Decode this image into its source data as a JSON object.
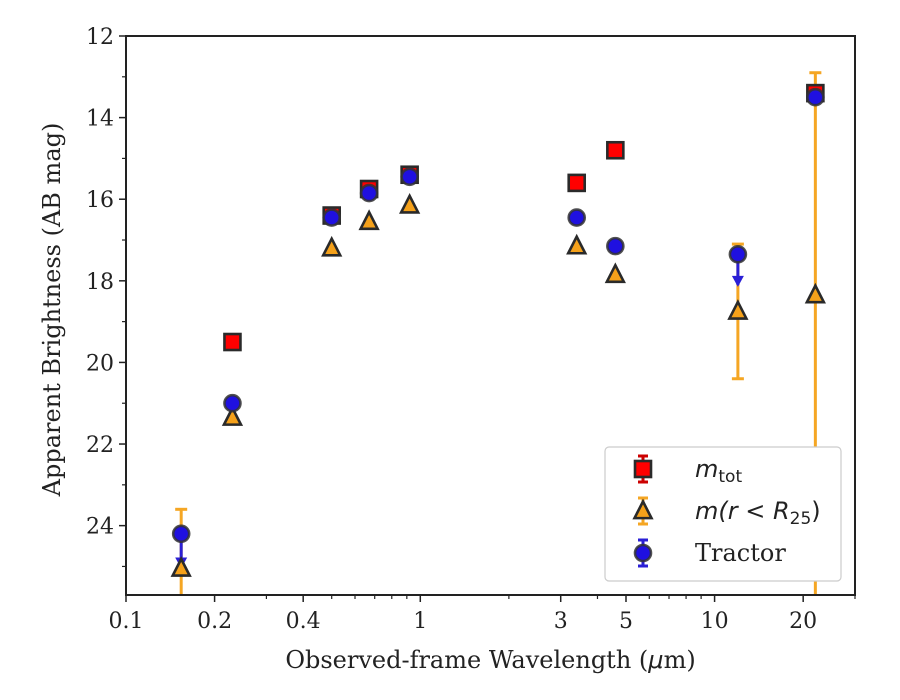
{
  "chart_data": {
    "type": "scatter",
    "xlabel_pre": "Observed-frame Wavelength (",
    "xlabel_mu": "μ",
    "xlabel_post": "m)",
    "ylabel": "Apparent Brightness (AB mag)",
    "xscale": "log",
    "xlim": [
      0.1,
      30
    ],
    "ylim": [
      25.7,
      12
    ],
    "y_inverted": true,
    "grid": false,
    "legend_position": "lower-right",
    "x_ticks": [
      {
        "value": 0.1,
        "label": "0.1"
      },
      {
        "value": 0.2,
        "label": "0.2"
      },
      {
        "value": 0.4,
        "label": "0.4"
      },
      {
        "value": 1,
        "label": "1"
      },
      {
        "value": 3,
        "label": "3"
      },
      {
        "value": 5,
        "label": "5"
      },
      {
        "value": 10,
        "label": "10"
      },
      {
        "value": 20,
        "label": "20"
      }
    ],
    "y_ticks": [
      12,
      14,
      16,
      18,
      20,
      22,
      24
    ],
    "y_minor_ticks": [
      13,
      15,
      17,
      19,
      21,
      23,
      25
    ],
    "series": [
      {
        "key": "mtot",
        "legend": {
          "main": "m",
          "sub": "tot"
        },
        "marker": "square",
        "face_color": "#ff0000",
        "edge_color": "#2a2a2a",
        "err_color": "#cc0000",
        "points": [
          {
            "x": 0.23,
            "y": 19.5
          },
          {
            "x": 0.5,
            "y": 16.4
          },
          {
            "x": 0.67,
            "y": 15.75
          },
          {
            "x": 0.92,
            "y": 15.4
          },
          {
            "x": 3.4,
            "y": 15.6
          },
          {
            "x": 4.6,
            "y": 14.8
          },
          {
            "x": 22,
            "y": 13.4,
            "err_lo": 13.25,
            "err_hi": 13.55
          }
        ]
      },
      {
        "key": "mr25",
        "legend": {
          "pre": "m(r < R",
          "sub": "25",
          "post": ")"
        },
        "marker": "triangle",
        "face_color": "#f5a11a",
        "edge_color": "#2a2a2a",
        "err_color": "#f5a623",
        "points": [
          {
            "x": 0.154,
            "y": 25.05,
            "err_lo": 23.6,
            "err_hi": 25.7
          },
          {
            "x": 0.23,
            "y": 21.35
          },
          {
            "x": 0.5,
            "y": 17.2
          },
          {
            "x": 0.67,
            "y": 16.55
          },
          {
            "x": 0.92,
            "y": 16.15
          },
          {
            "x": 3.4,
            "y": 17.15
          },
          {
            "x": 4.6,
            "y": 17.85
          },
          {
            "x": 12,
            "y": 18.75,
            "err_lo": 17.1,
            "err_hi": 20.4
          },
          {
            "x": 22,
            "y": 18.35,
            "err_lo": 12.9,
            "err_hi": 25.7
          }
        ]
      },
      {
        "key": "tractor",
        "legend": {
          "text": "Tractor"
        },
        "marker": "circle",
        "face_color": "#1f10e0",
        "edge_color": "#333333",
        "err_color": "#2a1fd6",
        "points": [
          {
            "x": 0.154,
            "y": 24.2,
            "upper_limit": true,
            "arrow_to": 25.0
          },
          {
            "x": 0.23,
            "y": 21.0
          },
          {
            "x": 0.5,
            "y": 16.45
          },
          {
            "x": 0.67,
            "y": 15.85
          },
          {
            "x": 0.92,
            "y": 15.45
          },
          {
            "x": 3.4,
            "y": 16.45
          },
          {
            "x": 4.6,
            "y": 17.15
          },
          {
            "x": 12,
            "y": 17.35,
            "upper_limit": true,
            "arrow_to": 18.1
          },
          {
            "x": 22,
            "y": 13.5
          }
        ]
      }
    ]
  }
}
